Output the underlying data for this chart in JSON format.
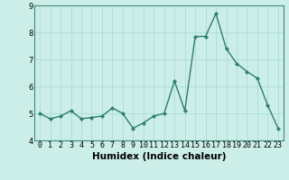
{
  "x": [
    0,
    1,
    2,
    3,
    4,
    5,
    6,
    7,
    8,
    9,
    10,
    11,
    12,
    13,
    14,
    15,
    16,
    17,
    18,
    19,
    20,
    21,
    22,
    23
  ],
  "y": [
    5.0,
    4.8,
    4.9,
    5.1,
    4.8,
    4.85,
    4.9,
    5.2,
    5.0,
    4.45,
    4.65,
    4.9,
    5.0,
    6.2,
    5.1,
    7.85,
    7.85,
    8.7,
    7.4,
    6.85,
    6.55,
    6.3,
    5.3,
    4.45
  ],
  "line_color": "#2e7d6e",
  "marker": "D",
  "marker_size": 2.2,
  "linewidth": 1.0,
  "xlabel": "Humidex (Indice chaleur)",
  "ylim": [
    4.0,
    9.0
  ],
  "xlim": [
    -0.5,
    23.5
  ],
  "yticks": [
    4,
    5,
    6,
    7,
    8,
    9
  ],
  "xticks": [
    0,
    1,
    2,
    3,
    4,
    5,
    6,
    7,
    8,
    9,
    10,
    11,
    12,
    13,
    14,
    15,
    16,
    17,
    18,
    19,
    20,
    21,
    22,
    23
  ],
  "xtick_labels": [
    "0",
    "1",
    "2",
    "3",
    "4",
    "5",
    "6",
    "7",
    "8",
    "9",
    "10",
    "11",
    "12",
    "13",
    "14",
    "15",
    "16",
    "17",
    "18",
    "19",
    "20",
    "21",
    "22",
    "23"
  ],
  "bg_color": "#cceee8",
  "grid_color": "#aaddda",
  "spine_color": "#3d8a7a",
  "tick_fontsize": 6.0,
  "xlabel_fontsize": 7.5,
  "xlabel_fontweight": "bold"
}
